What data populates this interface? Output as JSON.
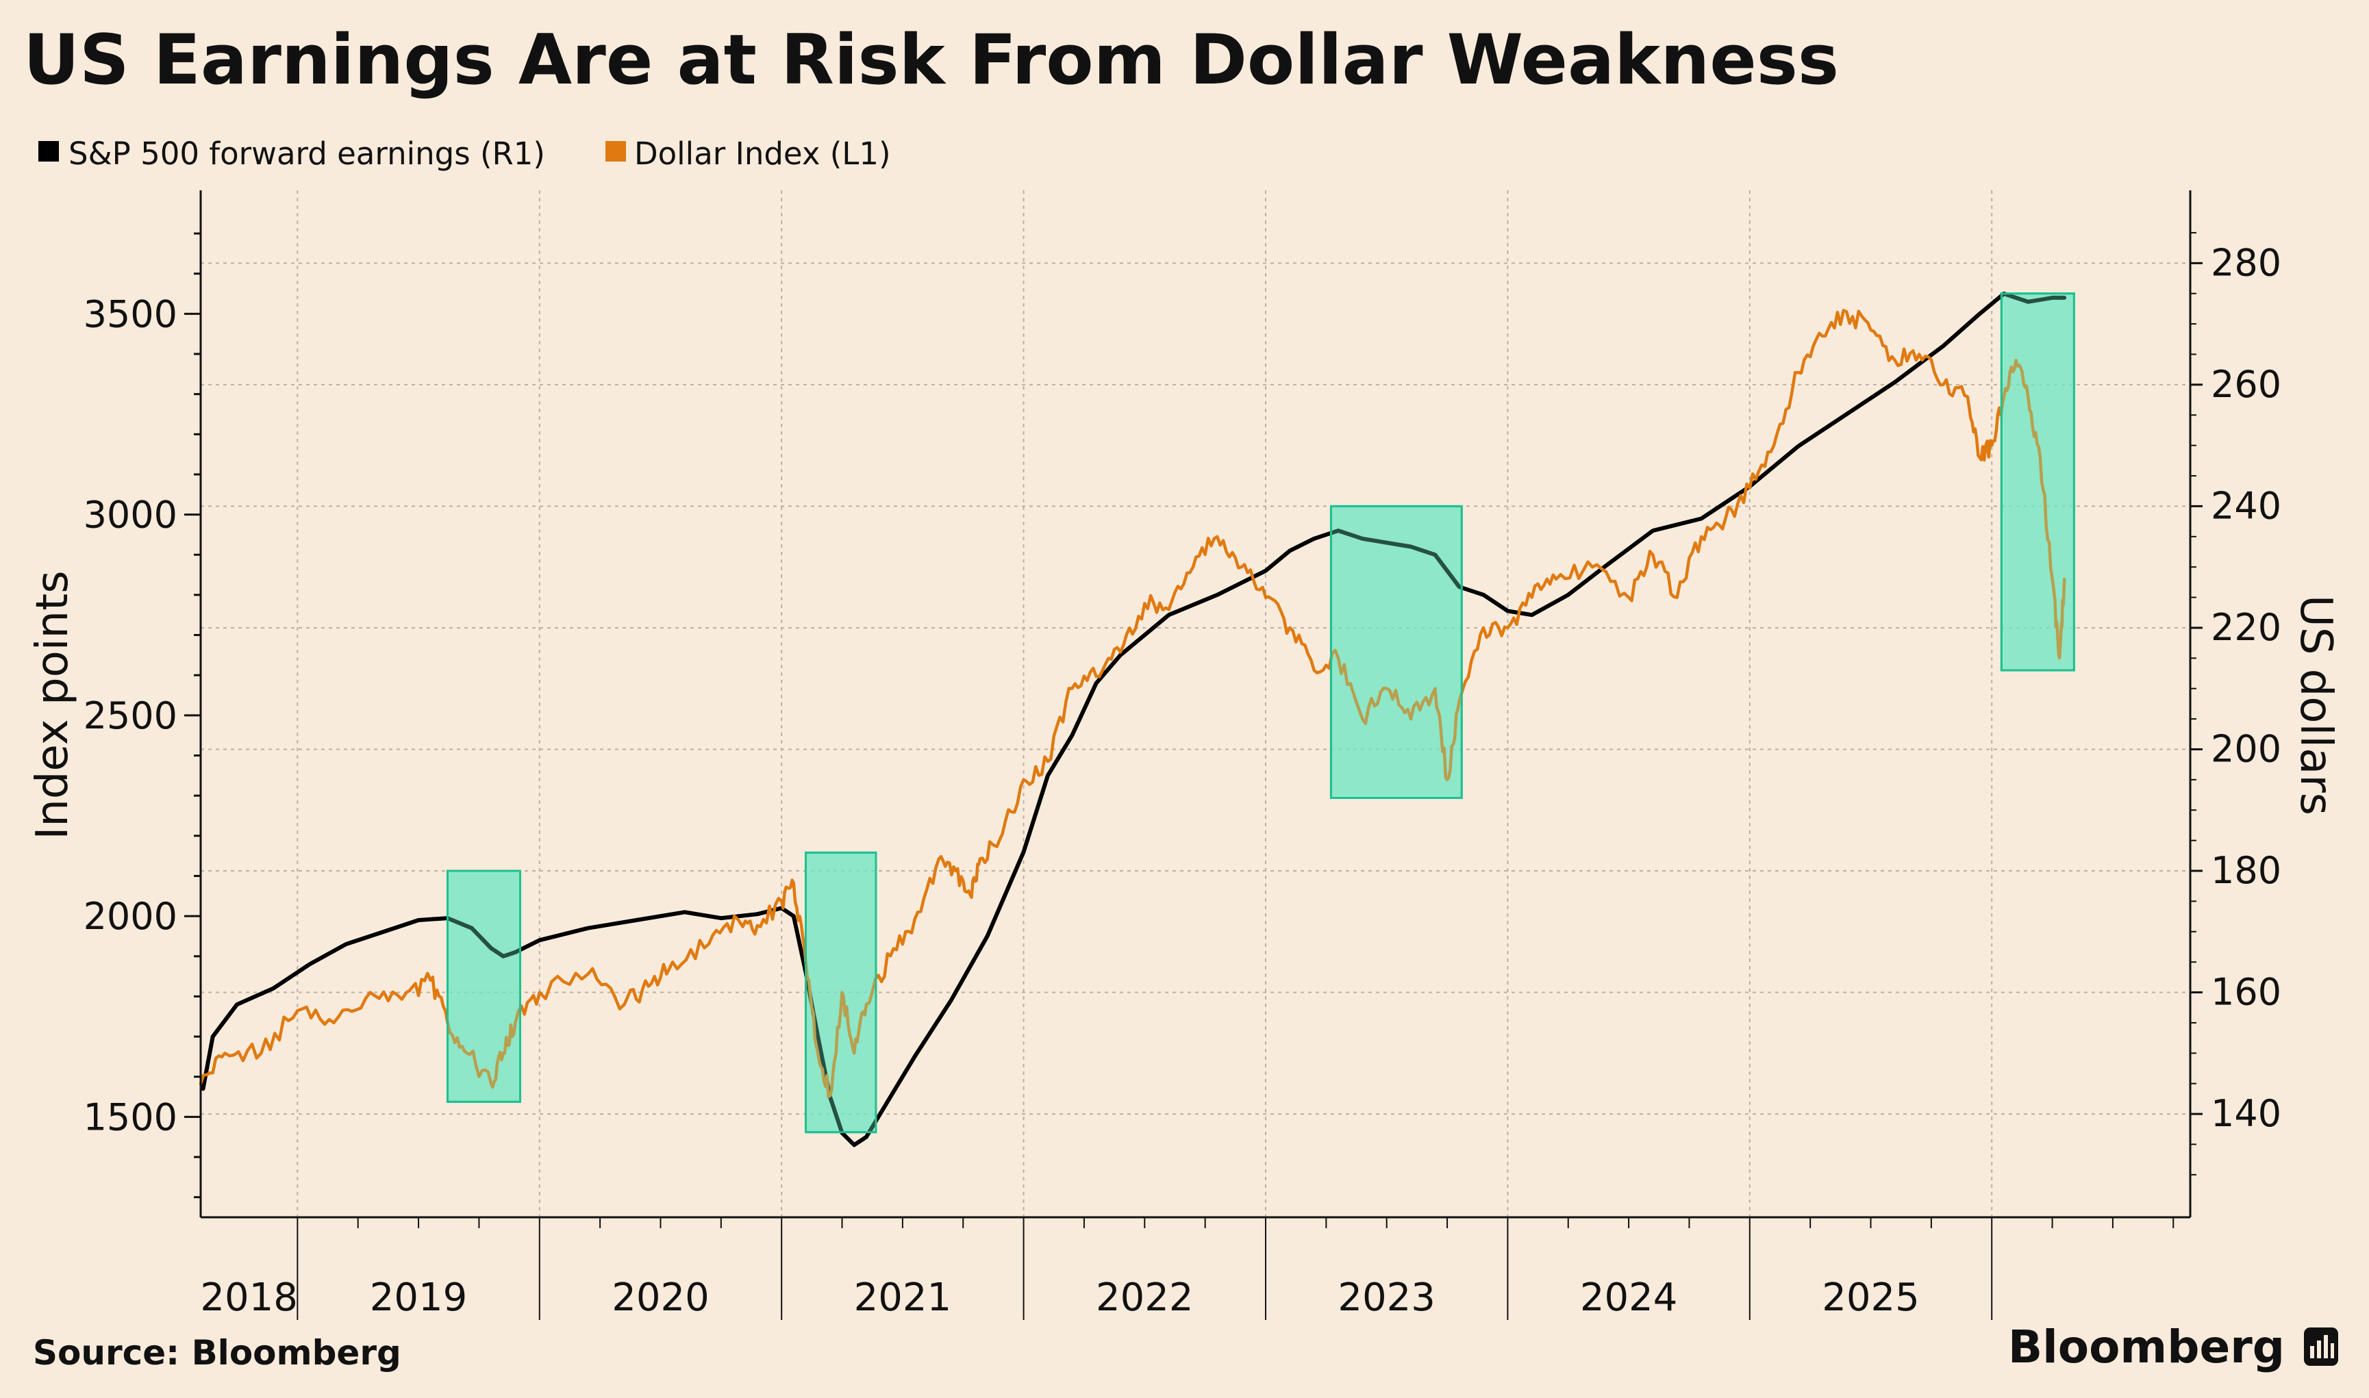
{
  "title": "US Earnings Are at Risk From Dollar Weakness",
  "source": "Source: Bloomberg",
  "brand": "Bloomberg",
  "colors": {
    "background": "#F9EBDC",
    "sp500": "#000000",
    "dollar": "#E07A10",
    "shade_fill": "#6EE6C2",
    "shade_stroke": "#1FC090",
    "grid": "#B8B0A6",
    "axis": "#111111"
  },
  "chart_data": {
    "type": "line",
    "title": "US Earnings Are at Risk From Dollar Weakness",
    "legend_position": "top-left",
    "grid": true,
    "legend": [
      {
        "label": "S&P 500 forward earnings (R1)",
        "color": "#000000"
      },
      {
        "label": "Dollar Index (L1)",
        "color": "#E07A10"
      }
    ],
    "x": {
      "range": [
        2017.6,
        2025.82
      ],
      "year_labels": [
        "2018",
        "2019",
        "2020",
        "2021",
        "2022",
        "2023",
        "2024",
        "2025"
      ]
    },
    "left_axis": {
      "label": "Index points",
      "ylim": [
        1250,
        3770
      ],
      "ticks": [
        1500,
        2000,
        2500,
        3000,
        3500
      ],
      "tick_labels": [
        "1500",
        "2000",
        "2500",
        "3000",
        "3500"
      ]
    },
    "right_axis": {
      "label": "US dollars",
      "ylim": [
        123,
        289.5
      ],
      "ticks": [
        140,
        160,
        180,
        200,
        220,
        240,
        260,
        280
      ],
      "tick_labels": [
        "140",
        "160",
        "180",
        "200",
        "220",
        "240",
        "260",
        "280"
      ]
    },
    "series": [
      {
        "name": "S&P 500 forward earnings (R1)",
        "axis": "left",
        "color": "#000000",
        "x": [
          2017.61,
          2017.65,
          2017.75,
          2017.9,
          2018.05,
          2018.2,
          2018.35,
          2018.5,
          2018.62,
          2018.72,
          2018.8,
          2018.85,
          2018.9,
          2019.0,
          2019.2,
          2019.4,
          2019.6,
          2019.75,
          2019.9,
          2020.0,
          2020.05,
          2020.1,
          2020.15,
          2020.2,
          2020.25,
          2020.3,
          2020.35,
          2020.4,
          2020.45,
          2020.55,
          2020.7,
          2020.85,
          2021.0,
          2021.1,
          2021.2,
          2021.3,
          2021.4,
          2021.5,
          2021.6,
          2021.8,
          2022.0,
          2022.1,
          2022.2,
          2022.3,
          2022.4,
          2022.5,
          2022.6,
          2022.7,
          2022.8,
          2022.9,
          2023.0,
          2023.1,
          2023.25,
          2023.4,
          2023.6,
          2023.8,
          2024.0,
          2024.2,
          2024.4,
          2024.6,
          2024.8,
          2024.95,
          2025.05,
          2025.15,
          2025.25,
          2025.3
        ],
        "y": [
          1570,
          1700,
          1780,
          1820,
          1880,
          1930,
          1960,
          1990,
          1995,
          1970,
          1920,
          1900,
          1910,
          1940,
          1970,
          1990,
          2010,
          1995,
          2005,
          2020,
          2000,
          1860,
          1700,
          1550,
          1460,
          1430,
          1450,
          1500,
          1550,
          1650,
          1790,
          1950,
          2160,
          2350,
          2450,
          2580,
          2650,
          2700,
          2750,
          2800,
          2860,
          2910,
          2940,
          2960,
          2940,
          2930,
          2920,
          2900,
          2820,
          2800,
          2760,
          2750,
          2800,
          2870,
          2960,
          2990,
          3070,
          3170,
          3250,
          3330,
          3420,
          3500,
          3550,
          3530,
          3540,
          3540
        ]
      },
      {
        "name": "Dollar Index (L1)",
        "axis": "right",
        "color": "#E07A10",
        "x": [
          2017.6,
          2017.7,
          2017.85,
          2018.0,
          2018.15,
          2018.3,
          2018.45,
          2018.55,
          2018.62,
          2018.7,
          2018.8,
          2018.85,
          2018.9,
          2019.0,
          2019.2,
          2019.35,
          2019.45,
          2019.55,
          2019.7,
          2019.82,
          2019.9,
          2020.0,
          2020.05,
          2020.1,
          2020.15,
          2020.2,
          2020.25,
          2020.3,
          2020.35,
          2020.45,
          2020.55,
          2020.65,
          2020.72,
          2020.78,
          2020.82,
          2020.9,
          2021.0,
          2021.1,
          2021.2,
          2021.3,
          2021.4,
          2021.5,
          2021.6,
          2021.7,
          2021.8,
          2021.9,
          2022.0,
          2022.1,
          2022.2,
          2022.3,
          2022.4,
          2022.5,
          2022.6,
          2022.7,
          2022.75,
          2022.8,
          2022.9,
          2023.0,
          2023.1,
          2023.2,
          2023.35,
          2023.5,
          2023.6,
          2023.7,
          2023.8,
          2023.9,
          2024.0,
          2024.1,
          2024.2,
          2024.3,
          2024.4,
          2024.5,
          2024.6,
          2024.7,
          2024.8,
          2024.9,
          2024.95,
          2025.0,
          2025.05,
          2025.1,
          2025.15,
          2025.2,
          2025.25,
          2025.28,
          2025.3
        ],
        "y": [
          145,
          150,
          150,
          157,
          155,
          160,
          160,
          162,
          155,
          150,
          145,
          150,
          155,
          160,
          163,
          158,
          161,
          165,
          168,
          172,
          171,
          175,
          178,
          165,
          150,
          143,
          160,
          150,
          158,
          166,
          172,
          182,
          180,
          176,
          182,
          185,
          195,
          198,
          210,
          212,
          216,
          224,
          223,
          230,
          235,
          230,
          225,
          220,
          213,
          215,
          205,
          210,
          205,
          210,
          195,
          208,
          220,
          220,
          225,
          228,
          230,
          225,
          232,
          225,
          235,
          238,
          243,
          250,
          262,
          268,
          272,
          269,
          264,
          265,
          260,
          258,
          248,
          250,
          258,
          264,
          258,
          248,
          228,
          215,
          228
        ]
      }
    ],
    "highlight_periods": [
      {
        "x_start": 2018.62,
        "x_end": 2018.92,
        "y_low_right": 142,
        "y_high_right": 180
      },
      {
        "x_start": 2020.1,
        "x_end": 2020.39,
        "y_low_right": 137,
        "y_high_right": 183
      },
      {
        "x_start": 2022.27,
        "x_end": 2022.81,
        "y_low_right": 192,
        "y_high_right": 240
      },
      {
        "x_start": 2025.04,
        "x_end": 2025.34,
        "y_low_right": 213,
        "y_high_right": 275
      }
    ]
  }
}
